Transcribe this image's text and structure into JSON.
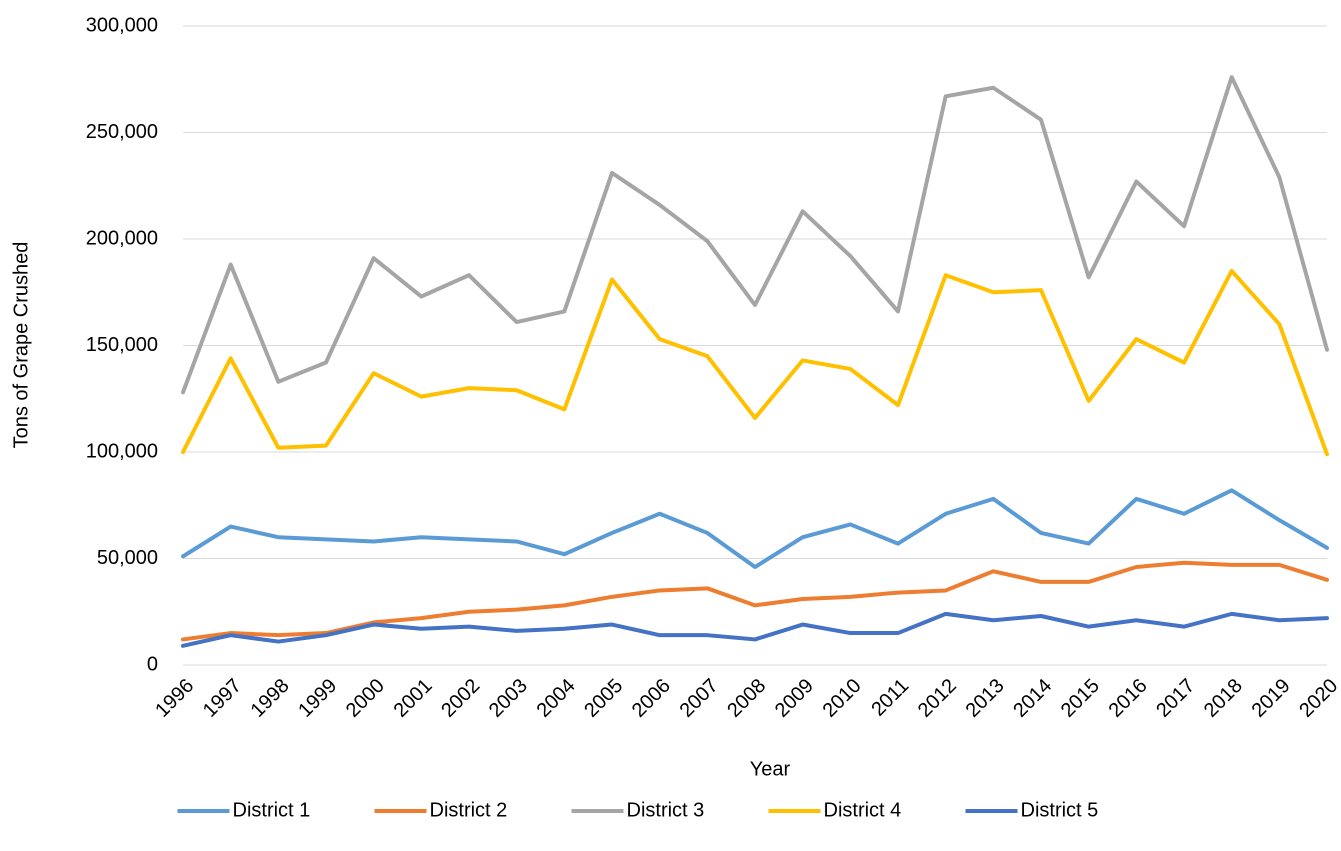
{
  "chart_data": {
    "type": "line",
    "y_label": "Tons of Grape Crushed",
    "x_label": "Year",
    "categories": [
      "1996",
      "1997",
      "1998",
      "1999",
      "2000",
      "2001",
      "2002",
      "2003",
      "2004",
      "2005",
      "2006",
      "2007",
      "2008",
      "2009",
      "2010",
      "2011",
      "2012",
      "2013",
      "2014",
      "2015",
      "2016",
      "2017",
      "2018",
      "2019",
      "2020"
    ],
    "series": [
      {
        "name": "District 1",
        "color": "#5b9bd5",
        "values": [
          51000,
          65000,
          60000,
          59000,
          58000,
          60000,
          59000,
          58000,
          52000,
          62000,
          71000,
          62000,
          46000,
          60000,
          66000,
          57000,
          71000,
          78000,
          62000,
          57000,
          78000,
          71000,
          82000,
          68000,
          55000
        ]
      },
      {
        "name": "District 2",
        "color": "#ed7d31",
        "values": [
          12000,
          15000,
          14000,
          15000,
          20000,
          22000,
          25000,
          26000,
          28000,
          32000,
          35000,
          36000,
          28000,
          31000,
          32000,
          34000,
          35000,
          44000,
          39000,
          39000,
          46000,
          48000,
          47000,
          47000,
          40000
        ]
      },
      {
        "name": "District 3",
        "color": "#a5a5a5",
        "values": [
          128000,
          188000,
          133000,
          142000,
          191000,
          173000,
          183000,
          161000,
          166000,
          231000,
          216000,
          199000,
          169000,
          213000,
          192000,
          166000,
          267000,
          271000,
          256000,
          182000,
          227000,
          206000,
          276000,
          229000,
          148000
        ]
      },
      {
        "name": "District 4",
        "color": "#ffc000",
        "values": [
          100000,
          144000,
          102000,
          103000,
          137000,
          126000,
          130000,
          129000,
          120000,
          181000,
          153000,
          145000,
          116000,
          143000,
          139000,
          122000,
          183000,
          175000,
          176000,
          124000,
          153000,
          142000,
          185000,
          160000,
          99000
        ]
      },
      {
        "name": "District 5",
        "color": "#4472c4",
        "values": [
          9000,
          14000,
          11000,
          14000,
          19000,
          17000,
          18000,
          16000,
          17000,
          19000,
          14000,
          14000,
          12000,
          19000,
          15000,
          15000,
          24000,
          21000,
          23000,
          18000,
          21000,
          18000,
          24000,
          21000,
          22000
        ]
      }
    ],
    "ylim": [
      0,
      300000
    ],
    "yticks": [
      0,
      {
        "value": 50000,
        "label": "50,000"
      },
      {
        "value": 100000,
        "label": "100,000"
      },
      {
        "value": 150000,
        "label": "150,000"
      },
      {
        "value": 200000,
        "label": "200,000"
      },
      {
        "value": 250000,
        "label": "250,000"
      },
      {
        "value": 300000,
        "label": "300,000"
      }
    ],
    "grid": true,
    "legend": "bottom"
  }
}
